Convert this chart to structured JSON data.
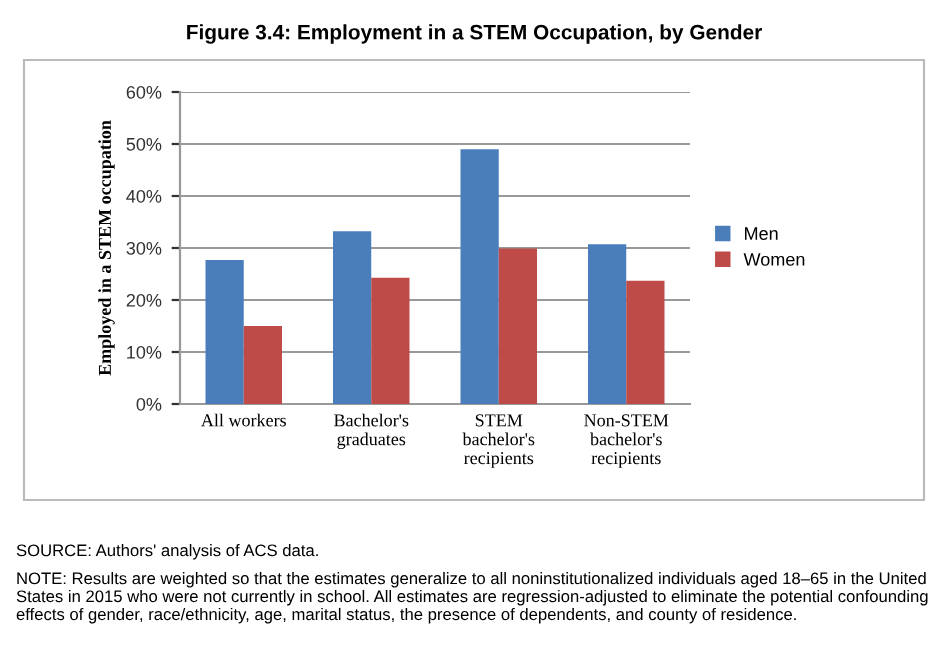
{
  "chart_data": {
    "type": "bar",
    "title": "Figure 3.4: Employment in a STEM Occupation, by Gender",
    "ylabel": "Employed in a STEM occupation",
    "categories": [
      "All workers",
      "Bachelor's\ngraduates",
      "STEM\nbachelor's\nrecipients",
      "Non-STEM\nbachelor's\nrecipients"
    ],
    "series": [
      {
        "name": "Men",
        "color": "#4a7ebb",
        "values": [
          27.7,
          33.2,
          49.0,
          30.7
        ]
      },
      {
        "name": "Women",
        "color": "#be4b48",
        "values": [
          15.0,
          24.3,
          29.9,
          23.7
        ]
      }
    ],
    "ylim": [
      0,
      60
    ],
    "yticks": [
      {
        "value": 0,
        "label": "0%"
      },
      {
        "value": 10,
        "label": "10%"
      },
      {
        "value": 20,
        "label": "20%"
      },
      {
        "value": 30,
        "label": "30%"
      },
      {
        "value": 40,
        "label": "40%"
      },
      {
        "value": 50,
        "label": "50%"
      },
      {
        "value": 60,
        "label": "60%"
      }
    ],
    "grid": "y",
    "legend": "right",
    "annotations": [
      "SOURCE: Authors' analysis of ACS data.",
      "NOTE: Results are weighted so that the estimates generalize to all noninstitutionalized individuals aged 18–65 in the United States in 2015 who were not currently in school. All estimates are regression-adjusted to eliminate the potential confounding effects of gender, race/ethnicity, age, marital status, the presence of dependents, and county of residence."
    ]
  }
}
